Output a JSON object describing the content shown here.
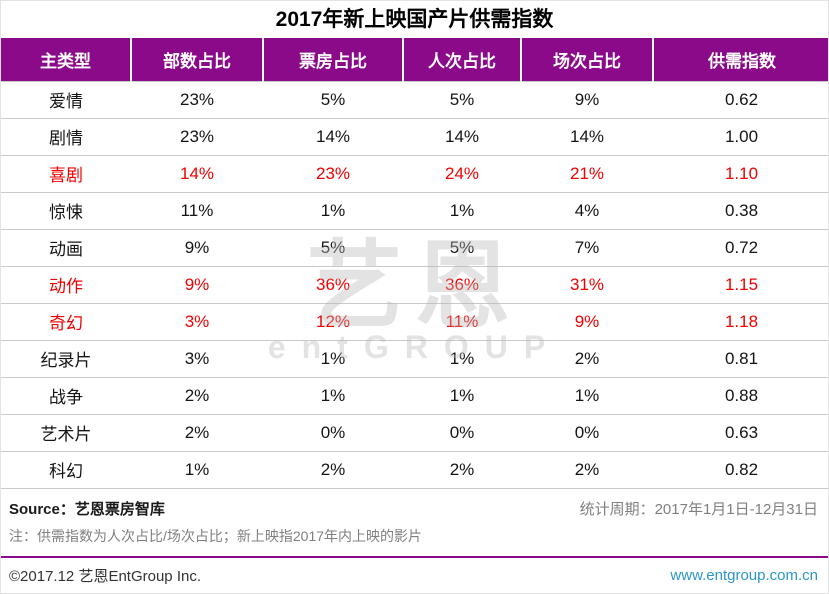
{
  "title": "2017年新上映国产片供需指数",
  "table": {
    "headers": [
      "主类型",
      "部数占比",
      "票房占比",
      "人次占比",
      "场次占比",
      "供需指数"
    ],
    "rows": [
      {
        "cells": [
          "爱情",
          "23%",
          "5%",
          "5%",
          "9%",
          "0.62"
        ],
        "highlight": false
      },
      {
        "cells": [
          "剧情",
          "23%",
          "14%",
          "14%",
          "14%",
          "1.00"
        ],
        "highlight": false
      },
      {
        "cells": [
          "喜剧",
          "14%",
          "23%",
          "24%",
          "21%",
          "1.10"
        ],
        "highlight": true
      },
      {
        "cells": [
          "惊悚",
          "11%",
          "1%",
          "1%",
          "4%",
          "0.38"
        ],
        "highlight": false
      },
      {
        "cells": [
          "动画",
          "9%",
          "5%",
          "5%",
          "7%",
          "0.72"
        ],
        "highlight": false
      },
      {
        "cells": [
          "动作",
          "9%",
          "36%",
          "36%",
          "31%",
          "1.15"
        ],
        "highlight": true
      },
      {
        "cells": [
          "奇幻",
          "3%",
          "12%",
          "11%",
          "9%",
          "1.18"
        ],
        "highlight": true
      },
      {
        "cells": [
          "纪录片",
          "3%",
          "1%",
          "1%",
          "2%",
          "0.81"
        ],
        "highlight": false
      },
      {
        "cells": [
          "战争",
          "2%",
          "1%",
          "1%",
          "1%",
          "0.88"
        ],
        "highlight": false
      },
      {
        "cells": [
          "艺术片",
          "2%",
          "0%",
          "0%",
          "0%",
          "0.63"
        ],
        "highlight": false
      },
      {
        "cells": [
          "科幻",
          "1%",
          "2%",
          "2%",
          "2%",
          "0.82"
        ],
        "highlight": false
      }
    ]
  },
  "notes": {
    "source": "Source：艺恩票房智库",
    "period": "统计周期：2017年1月1日-12月31日",
    "note": "注：供需指数为人次占比/场次占比；新上映指2017年内上映的影片"
  },
  "bottom_bar": {
    "copyright": "©2017.12 艺恩EntGroup Inc.",
    "website": "www.entgroup.com.cn"
  },
  "watermark": {
    "primary": "艺恩",
    "secondary": "entGROUP"
  },
  "colors": {
    "header_purple": "#8a0a8a",
    "highlight_red": "#f00000",
    "website_teal": "#2a96c8"
  },
  "chart_data": {
    "type": "table",
    "title": "2017年新上映国产片供需指数",
    "columns": [
      "主类型",
      "部数占比",
      "票房占比",
      "人次占比",
      "场次占比",
      "供需指数"
    ],
    "rows": [
      [
        "爱情",
        "23%",
        "5%",
        "5%",
        "9%",
        "0.62"
      ],
      [
        "剧情",
        "23%",
        "14%",
        "14%",
        "14%",
        "1.00"
      ],
      [
        "喜剧",
        "14%",
        "23%",
        "24%",
        "21%",
        "1.10"
      ],
      [
        "惊悚",
        "11%",
        "1%",
        "1%",
        "4%",
        "0.38"
      ],
      [
        "动画",
        "9%",
        "5%",
        "5%",
        "7%",
        "0.72"
      ],
      [
        "动作",
        "9%",
        "36%",
        "36%",
        "31%",
        "1.15"
      ],
      [
        "奇幻",
        "3%",
        "12%",
        "11%",
        "9%",
        "1.18"
      ],
      [
        "纪录片",
        "3%",
        "1%",
        "1%",
        "2%",
        "0.81"
      ],
      [
        "战争",
        "2%",
        "1%",
        "1%",
        "1%",
        "0.88"
      ],
      [
        "艺术片",
        "2%",
        "0%",
        "0%",
        "0%",
        "0.63"
      ],
      [
        "科幻",
        "1%",
        "2%",
        "2%",
        "2%",
        "0.82"
      ]
    ],
    "highlighted_rows": [
      "喜剧",
      "动作",
      "奇幻"
    ],
    "note": "供需指数 = 人次占比 / 场次占比"
  }
}
